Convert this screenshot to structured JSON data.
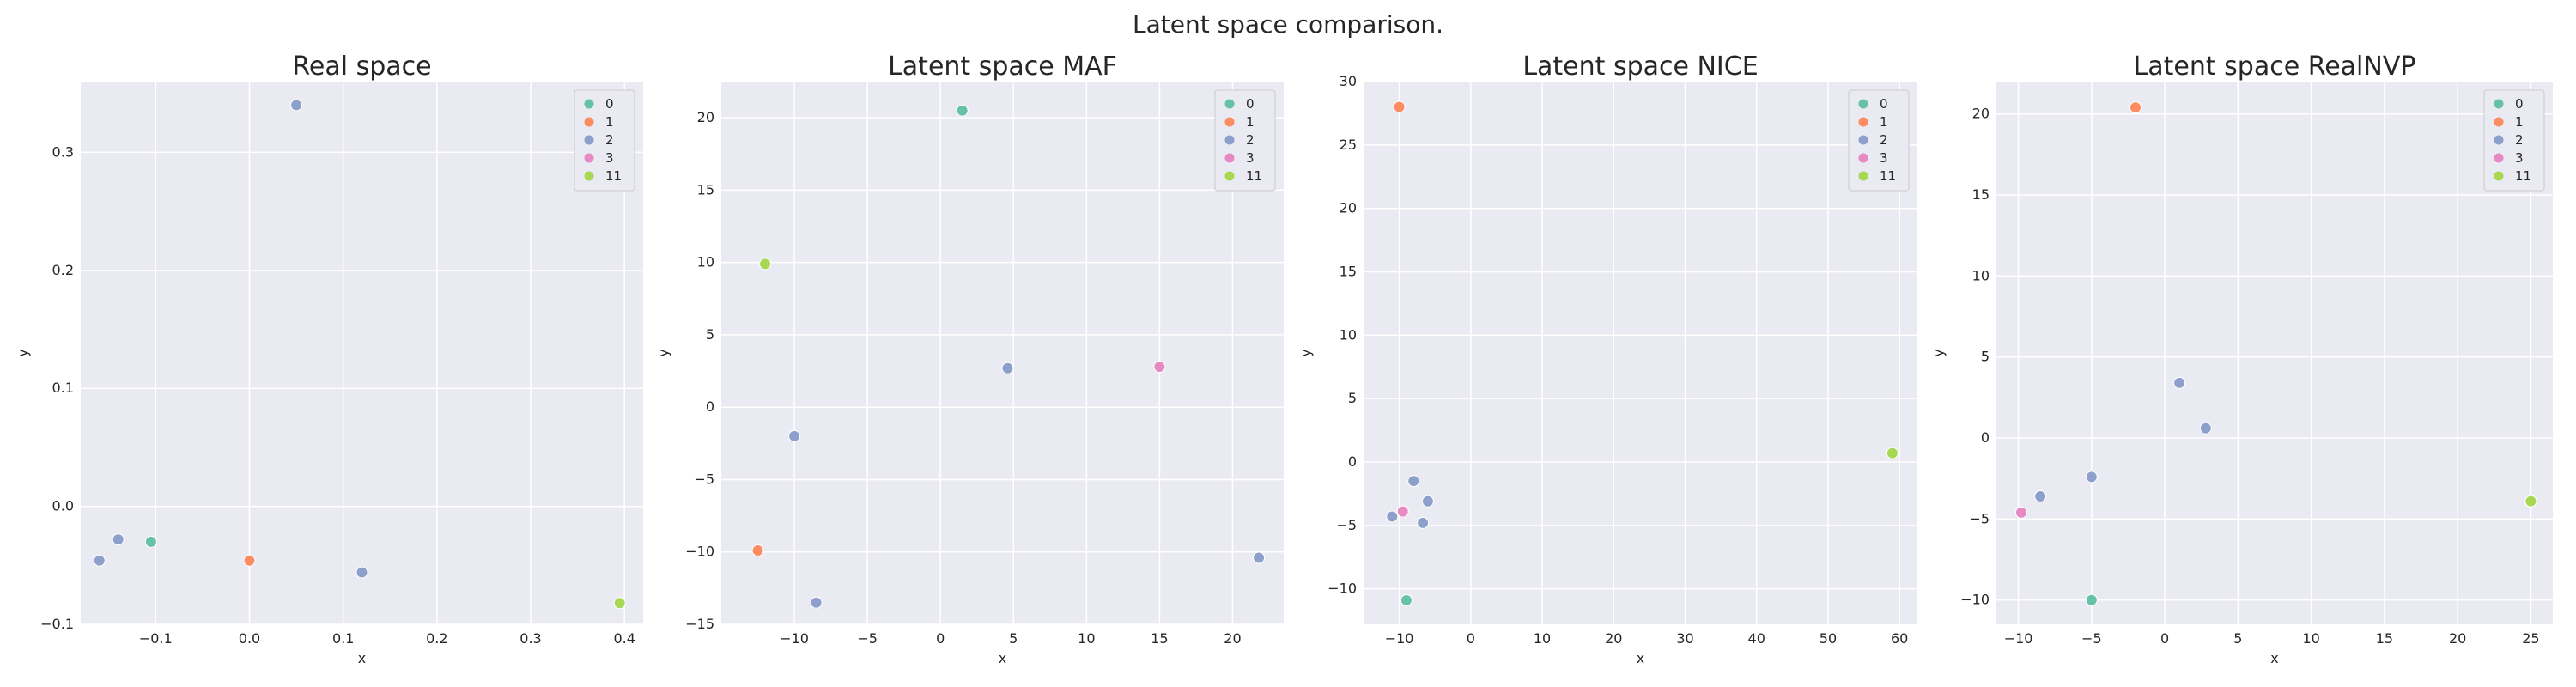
{
  "figure_title": "Latent space comparison.",
  "palette": {
    "0": "#66c2a5",
    "1": "#fc8d62",
    "2": "#8da0cb",
    "3": "#e78ac3",
    "11": "#a6d854",
    "plot_bg": "#eaeaf2",
    "grid": "#ffffff",
    "text": "#262626",
    "legend_bg": "#eaeaf2",
    "legend_border": "#cccccc"
  },
  "chart_data": [
    {
      "type": "scatter",
      "title": "Real space",
      "xlabel": "x",
      "ylabel": "y",
      "xlim": [
        -0.18,
        0.42
      ],
      "ylim": [
        -0.1,
        0.36
      ],
      "xticks": [
        -0.1,
        0.0,
        0.1,
        0.2,
        0.3,
        0.4
      ],
      "xtick_labels": [
        "−0.1",
        "0.0",
        "0.1",
        "0.2",
        "0.3",
        "0.4"
      ],
      "yticks": [
        -0.1,
        0.0,
        0.1,
        0.2,
        0.3
      ],
      "ytick_labels": [
        "−0.1",
        "0.0",
        "0.1",
        "0.2",
        "0.3"
      ],
      "grid": true,
      "legend": {
        "position": "top-right",
        "entries": [
          "0",
          "1",
          "2",
          "3",
          "11"
        ]
      },
      "points": [
        {
          "x": 0.05,
          "y": 0.34,
          "label": "2"
        },
        {
          "x": -0.16,
          "y": -0.046,
          "label": "2"
        },
        {
          "x": -0.14,
          "y": -0.028,
          "label": "2"
        },
        {
          "x": -0.105,
          "y": -0.03,
          "label": "0"
        },
        {
          "x": 0.0,
          "y": -0.046,
          "label": "1"
        },
        {
          "x": 0.12,
          "y": -0.056,
          "label": "2"
        },
        {
          "x": 0.395,
          "y": -0.082,
          "label": "11"
        }
      ]
    },
    {
      "type": "scatter",
      "title": "Latent space MAF",
      "xlabel": "x",
      "ylabel": "y",
      "xlim": [
        -15.0,
        23.5
      ],
      "ylim": [
        -15.0,
        22.5
      ],
      "xticks": [
        -10,
        -5,
        0,
        5,
        10,
        15,
        20
      ],
      "xtick_labels": [
        "−10",
        "−5",
        "0",
        "5",
        "10",
        "15",
        "20"
      ],
      "yticks": [
        -15,
        -10,
        -5,
        0,
        5,
        10,
        15,
        20
      ],
      "ytick_labels": [
        "−15",
        "−10",
        "−5",
        "0",
        "5",
        "10",
        "15",
        "20"
      ],
      "grid": true,
      "legend": {
        "position": "top-right",
        "entries": [
          "0",
          "1",
          "2",
          "3",
          "11"
        ]
      },
      "points": [
        {
          "x": 1.5,
          "y": 20.5,
          "label": "0"
        },
        {
          "x": -12.0,
          "y": 9.9,
          "label": "11"
        },
        {
          "x": 4.6,
          "y": 2.7,
          "label": "2"
        },
        {
          "x": 15.0,
          "y": 2.8,
          "label": "3"
        },
        {
          "x": -10.0,
          "y": -2.0,
          "label": "2"
        },
        {
          "x": -12.5,
          "y": -9.9,
          "label": "1"
        },
        {
          "x": -8.5,
          "y": -13.5,
          "label": "2"
        },
        {
          "x": 21.8,
          "y": -10.4,
          "label": "2"
        }
      ]
    },
    {
      "type": "scatter",
      "title": "Latent space NICE",
      "xlabel": "x",
      "ylabel": "y",
      "xlim": [
        -15.0,
        62.5
      ],
      "ylim": [
        -12.8,
        30.0
      ],
      "xticks": [
        -10,
        0,
        10,
        20,
        30,
        40,
        50,
        60
      ],
      "xtick_labels": [
        "−10",
        "0",
        "10",
        "20",
        "30",
        "40",
        "50",
        "60"
      ],
      "yticks": [
        -10,
        -5,
        0,
        5,
        10,
        15,
        20,
        25,
        30
      ],
      "ytick_labels": [
        "−10",
        "−5",
        "0",
        "5",
        "10",
        "15",
        "20",
        "25",
        "30"
      ],
      "grid": true,
      "legend": {
        "position": "top-right",
        "entries": [
          "0",
          "1",
          "2",
          "3",
          "11"
        ]
      },
      "points": [
        {
          "x": -10.0,
          "y": 28.0,
          "label": "1"
        },
        {
          "x": 59.0,
          "y": 0.7,
          "label": "11"
        },
        {
          "x": -8.0,
          "y": -1.5,
          "label": "2"
        },
        {
          "x": -6.0,
          "y": -3.1,
          "label": "2"
        },
        {
          "x": -9.5,
          "y": -3.9,
          "label": "3"
        },
        {
          "x": -11.0,
          "y": -4.3,
          "label": "2"
        },
        {
          "x": -6.7,
          "y": -4.8,
          "label": "2"
        },
        {
          "x": -9.0,
          "y": -10.9,
          "label": "0"
        }
      ]
    },
    {
      "type": "scatter",
      "title": "Latent space RealNVP",
      "xlabel": "x",
      "ylabel": "y",
      "xlim": [
        -11.5,
        26.5
      ],
      "ylim": [
        -11.5,
        22.0
      ],
      "xticks": [
        -10,
        -5,
        0,
        5,
        10,
        15,
        20,
        25
      ],
      "xtick_labels": [
        "−10",
        "−5",
        "0",
        "5",
        "10",
        "15",
        "20",
        "25"
      ],
      "yticks": [
        -10,
        -5,
        0,
        5,
        10,
        15,
        20
      ],
      "ytick_labels": [
        "−10",
        "−5",
        "0",
        "5",
        "10",
        "15",
        "20"
      ],
      "grid": true,
      "legend": {
        "position": "top-right",
        "entries": [
          "0",
          "1",
          "2",
          "3",
          "11"
        ]
      },
      "points": [
        {
          "x": -2.0,
          "y": 20.4,
          "label": "1"
        },
        {
          "x": 1.0,
          "y": 3.4,
          "label": "2"
        },
        {
          "x": 2.8,
          "y": 0.6,
          "label": "2"
        },
        {
          "x": -5.0,
          "y": -2.4,
          "label": "2"
        },
        {
          "x": -8.5,
          "y": -3.6,
          "label": "2"
        },
        {
          "x": -9.8,
          "y": -4.6,
          "label": "3"
        },
        {
          "x": -5.0,
          "y": -10.0,
          "label": "0"
        },
        {
          "x": 25.0,
          "y": -3.9,
          "label": "11"
        }
      ]
    }
  ]
}
